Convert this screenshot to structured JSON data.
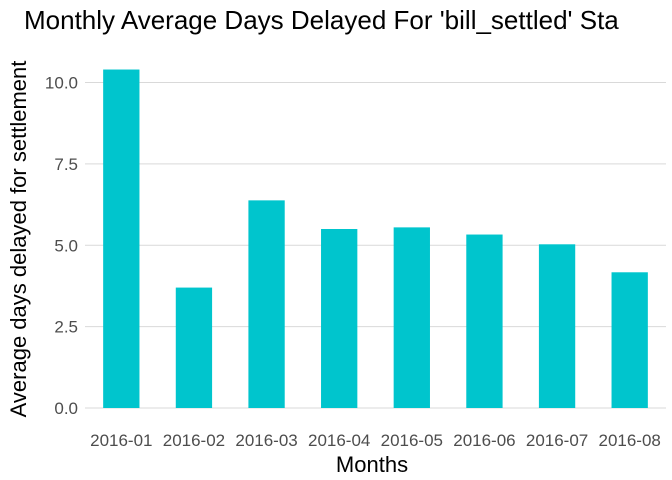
{
  "chart_data": {
    "type": "bar",
    "title": "Monthly Average Days Delayed For 'bill_settled' Sta",
    "xlabel": "Months",
    "ylabel": "Average days delayed for settlement",
    "categories": [
      "2016-01",
      "2016-02",
      "2016-03",
      "2016-04",
      "2016-05",
      "2016-06",
      "2016-07",
      "2016-08"
    ],
    "values": [
      10.4,
      3.7,
      6.38,
      5.5,
      5.55,
      5.33,
      5.03,
      4.17
    ],
    "ylim": [
      0,
      11
    ],
    "yticks": [
      0,
      2.5,
      5,
      7.5,
      10
    ],
    "ytick_labels": [
      "0.0",
      "2.5",
      "5.0",
      "7.5",
      "10.0"
    ],
    "grid": true,
    "colors": {
      "bar": "#00C5CD",
      "grid": "#d9d9d9"
    }
  }
}
